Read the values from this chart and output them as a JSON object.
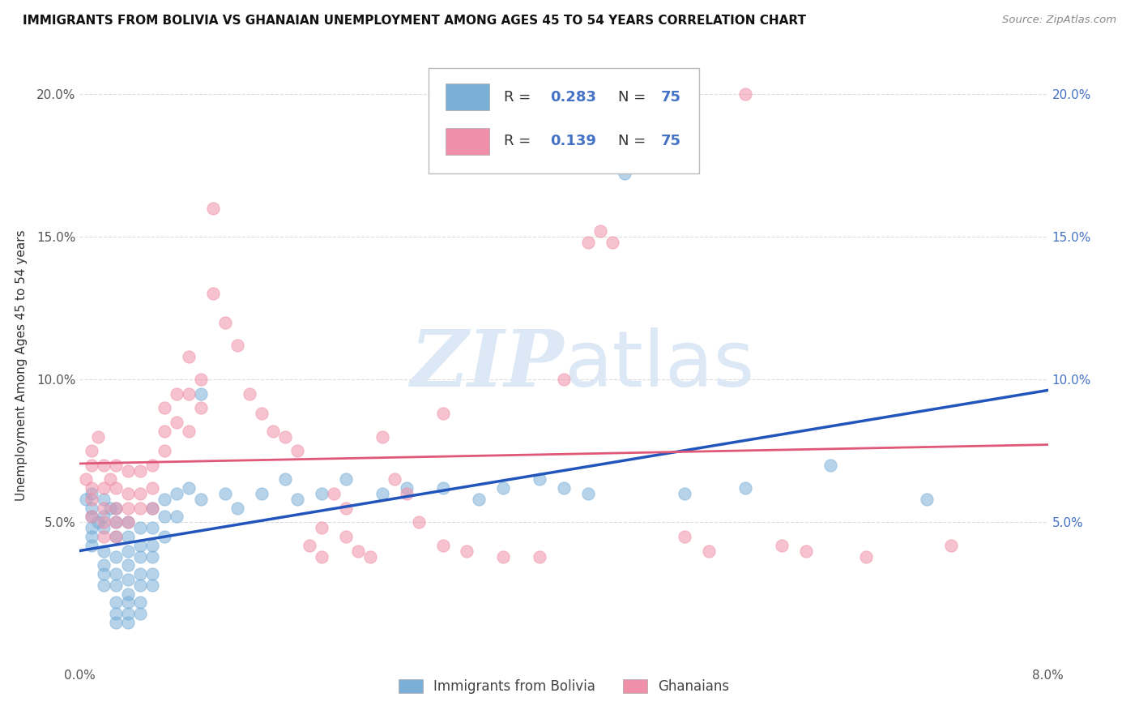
{
  "title": "IMMIGRANTS FROM BOLIVIA VS GHANAIAN UNEMPLOYMENT AMONG AGES 45 TO 54 YEARS CORRELATION CHART",
  "source": "Source: ZipAtlas.com",
  "ylabel": "Unemployment Among Ages 45 to 54 years",
  "xlim": [
    0.0,
    0.08
  ],
  "ylim": [
    0.0,
    0.21
  ],
  "bolivia_color": "#7ab0d8",
  "ghana_color": "#f090a8",
  "bolivia_line_color": "#2255bb",
  "ghana_line_color": "#e05878",
  "watermark_text": "ZIPatlas",
  "watermark_color": "#dce8f5",
  "background_color": "#ffffff",
  "grid_color": "#dddddd",
  "title_color": "#111111",
  "source_color": "#888888",
  "blue_text_color": "#4472c4",
  "R_bolivia": 0.283,
  "R_ghana": 0.139,
  "N": 75,
  "bolivia_scatter": [
    [
      0.0005,
      0.058
    ],
    [
      0.001,
      0.06
    ],
    [
      0.001,
      0.055
    ],
    [
      0.001,
      0.048
    ],
    [
      0.001,
      0.052
    ],
    [
      0.001,
      0.045
    ],
    [
      0.001,
      0.042
    ],
    [
      0.0015,
      0.05
    ],
    [
      0.002,
      0.058
    ],
    [
      0.002,
      0.052
    ],
    [
      0.002,
      0.048
    ],
    [
      0.002,
      0.04
    ],
    [
      0.002,
      0.035
    ],
    [
      0.002,
      0.032
    ],
    [
      0.002,
      0.028
    ],
    [
      0.0025,
      0.055
    ],
    [
      0.003,
      0.055
    ],
    [
      0.003,
      0.05
    ],
    [
      0.003,
      0.045
    ],
    [
      0.003,
      0.038
    ],
    [
      0.003,
      0.032
    ],
    [
      0.003,
      0.028
    ],
    [
      0.003,
      0.022
    ],
    [
      0.003,
      0.018
    ],
    [
      0.003,
      0.015
    ],
    [
      0.004,
      0.05
    ],
    [
      0.004,
      0.045
    ],
    [
      0.004,
      0.04
    ],
    [
      0.004,
      0.035
    ],
    [
      0.004,
      0.03
    ],
    [
      0.004,
      0.025
    ],
    [
      0.004,
      0.022
    ],
    [
      0.004,
      0.018
    ],
    [
      0.004,
      0.015
    ],
    [
      0.005,
      0.048
    ],
    [
      0.005,
      0.042
    ],
    [
      0.005,
      0.038
    ],
    [
      0.005,
      0.032
    ],
    [
      0.005,
      0.028
    ],
    [
      0.005,
      0.022
    ],
    [
      0.005,
      0.018
    ],
    [
      0.006,
      0.055
    ],
    [
      0.006,
      0.048
    ],
    [
      0.006,
      0.042
    ],
    [
      0.006,
      0.038
    ],
    [
      0.006,
      0.032
    ],
    [
      0.006,
      0.028
    ],
    [
      0.007,
      0.058
    ],
    [
      0.007,
      0.052
    ],
    [
      0.007,
      0.045
    ],
    [
      0.008,
      0.06
    ],
    [
      0.008,
      0.052
    ],
    [
      0.009,
      0.062
    ],
    [
      0.01,
      0.058
    ],
    [
      0.01,
      0.095
    ],
    [
      0.012,
      0.06
    ],
    [
      0.013,
      0.055
    ],
    [
      0.015,
      0.06
    ],
    [
      0.017,
      0.065
    ],
    [
      0.018,
      0.058
    ],
    [
      0.02,
      0.06
    ],
    [
      0.022,
      0.065
    ],
    [
      0.025,
      0.06
    ],
    [
      0.027,
      0.062
    ],
    [
      0.03,
      0.062
    ],
    [
      0.033,
      0.058
    ],
    [
      0.035,
      0.062
    ],
    [
      0.038,
      0.065
    ],
    [
      0.04,
      0.062
    ],
    [
      0.042,
      0.06
    ],
    [
      0.045,
      0.172
    ],
    [
      0.05,
      0.06
    ],
    [
      0.055,
      0.062
    ],
    [
      0.062,
      0.07
    ],
    [
      0.07,
      0.058
    ]
  ],
  "ghana_scatter": [
    [
      0.0005,
      0.065
    ],
    [
      0.001,
      0.075
    ],
    [
      0.001,
      0.07
    ],
    [
      0.001,
      0.062
    ],
    [
      0.001,
      0.058
    ],
    [
      0.001,
      0.052
    ],
    [
      0.0015,
      0.08
    ],
    [
      0.002,
      0.07
    ],
    [
      0.002,
      0.062
    ],
    [
      0.002,
      0.055
    ],
    [
      0.002,
      0.05
    ],
    [
      0.002,
      0.045
    ],
    [
      0.0025,
      0.065
    ],
    [
      0.003,
      0.07
    ],
    [
      0.003,
      0.062
    ],
    [
      0.003,
      0.055
    ],
    [
      0.003,
      0.05
    ],
    [
      0.003,
      0.045
    ],
    [
      0.004,
      0.068
    ],
    [
      0.004,
      0.06
    ],
    [
      0.004,
      0.055
    ],
    [
      0.004,
      0.05
    ],
    [
      0.005,
      0.068
    ],
    [
      0.005,
      0.06
    ],
    [
      0.005,
      0.055
    ],
    [
      0.006,
      0.07
    ],
    [
      0.006,
      0.062
    ],
    [
      0.006,
      0.055
    ],
    [
      0.007,
      0.09
    ],
    [
      0.007,
      0.082
    ],
    [
      0.007,
      0.075
    ],
    [
      0.008,
      0.095
    ],
    [
      0.008,
      0.085
    ],
    [
      0.009,
      0.108
    ],
    [
      0.009,
      0.095
    ],
    [
      0.009,
      0.082
    ],
    [
      0.01,
      0.1
    ],
    [
      0.01,
      0.09
    ],
    [
      0.011,
      0.16
    ],
    [
      0.011,
      0.13
    ],
    [
      0.012,
      0.12
    ],
    [
      0.013,
      0.112
    ],
    [
      0.014,
      0.095
    ],
    [
      0.015,
      0.088
    ],
    [
      0.016,
      0.082
    ],
    [
      0.017,
      0.08
    ],
    [
      0.018,
      0.075
    ],
    [
      0.019,
      0.042
    ],
    [
      0.02,
      0.038
    ],
    [
      0.02,
      0.048
    ],
    [
      0.021,
      0.06
    ],
    [
      0.022,
      0.055
    ],
    [
      0.022,
      0.045
    ],
    [
      0.023,
      0.04
    ],
    [
      0.024,
      0.038
    ],
    [
      0.025,
      0.08
    ],
    [
      0.026,
      0.065
    ],
    [
      0.027,
      0.06
    ],
    [
      0.028,
      0.05
    ],
    [
      0.03,
      0.042
    ],
    [
      0.03,
      0.088
    ],
    [
      0.032,
      0.04
    ],
    [
      0.035,
      0.038
    ],
    [
      0.038,
      0.038
    ],
    [
      0.04,
      0.1
    ],
    [
      0.042,
      0.148
    ],
    [
      0.043,
      0.152
    ],
    [
      0.044,
      0.148
    ],
    [
      0.05,
      0.045
    ],
    [
      0.052,
      0.04
    ],
    [
      0.055,
      0.2
    ],
    [
      0.058,
      0.042
    ],
    [
      0.06,
      0.04
    ],
    [
      0.065,
      0.038
    ],
    [
      0.072,
      0.042
    ]
  ]
}
